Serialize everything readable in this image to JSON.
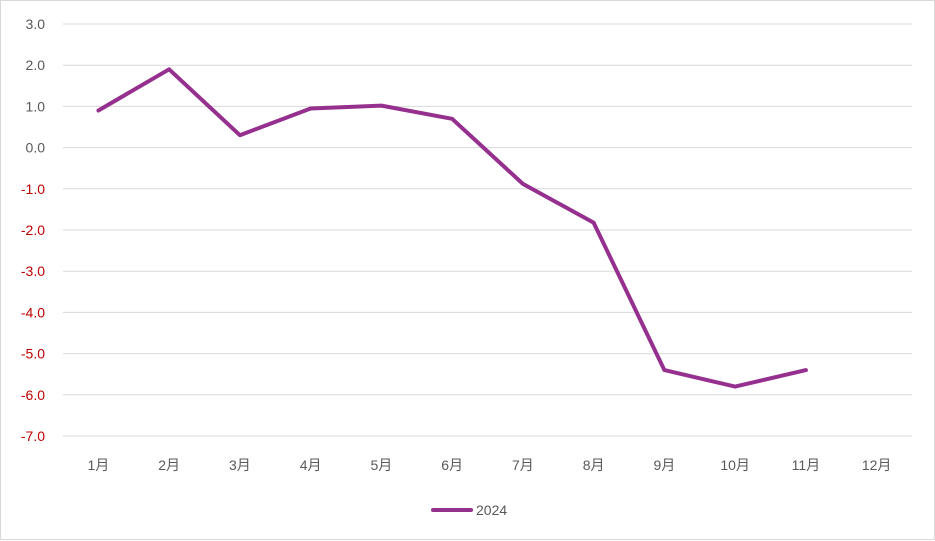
{
  "chart_data": {
    "type": "line",
    "categories": [
      "1月",
      "2月",
      "3月",
      "4月",
      "5月",
      "6月",
      "7月",
      "8月",
      "9月",
      "10月",
      "11月",
      "12月"
    ],
    "series": [
      {
        "name": "2024",
        "color": "#96308f",
        "values": [
          0.9,
          1.9,
          0.3,
          0.95,
          1.02,
          0.7,
          -0.88,
          -1.82,
          -5.4,
          -5.8,
          -5.4,
          null
        ]
      }
    ],
    "title": "",
    "xlabel": "",
    "ylabel": "",
    "ylim": [
      -7.0,
      3.0
    ],
    "yticks": [
      "3.0",
      "2.0",
      "1.0",
      "0.0",
      "-1.0",
      "-2.0",
      "-3.0",
      "-4.0",
      "-5.0",
      "-6.0",
      "-7.0"
    ],
    "ytick_values": [
      3,
      2,
      1,
      0,
      -1,
      -2,
      -3,
      -4,
      -5,
      -6,
      -7
    ],
    "positive_tick_color": "#595959",
    "negative_tick_color": "#c00000",
    "grid": true,
    "legend_position": "bottom"
  }
}
